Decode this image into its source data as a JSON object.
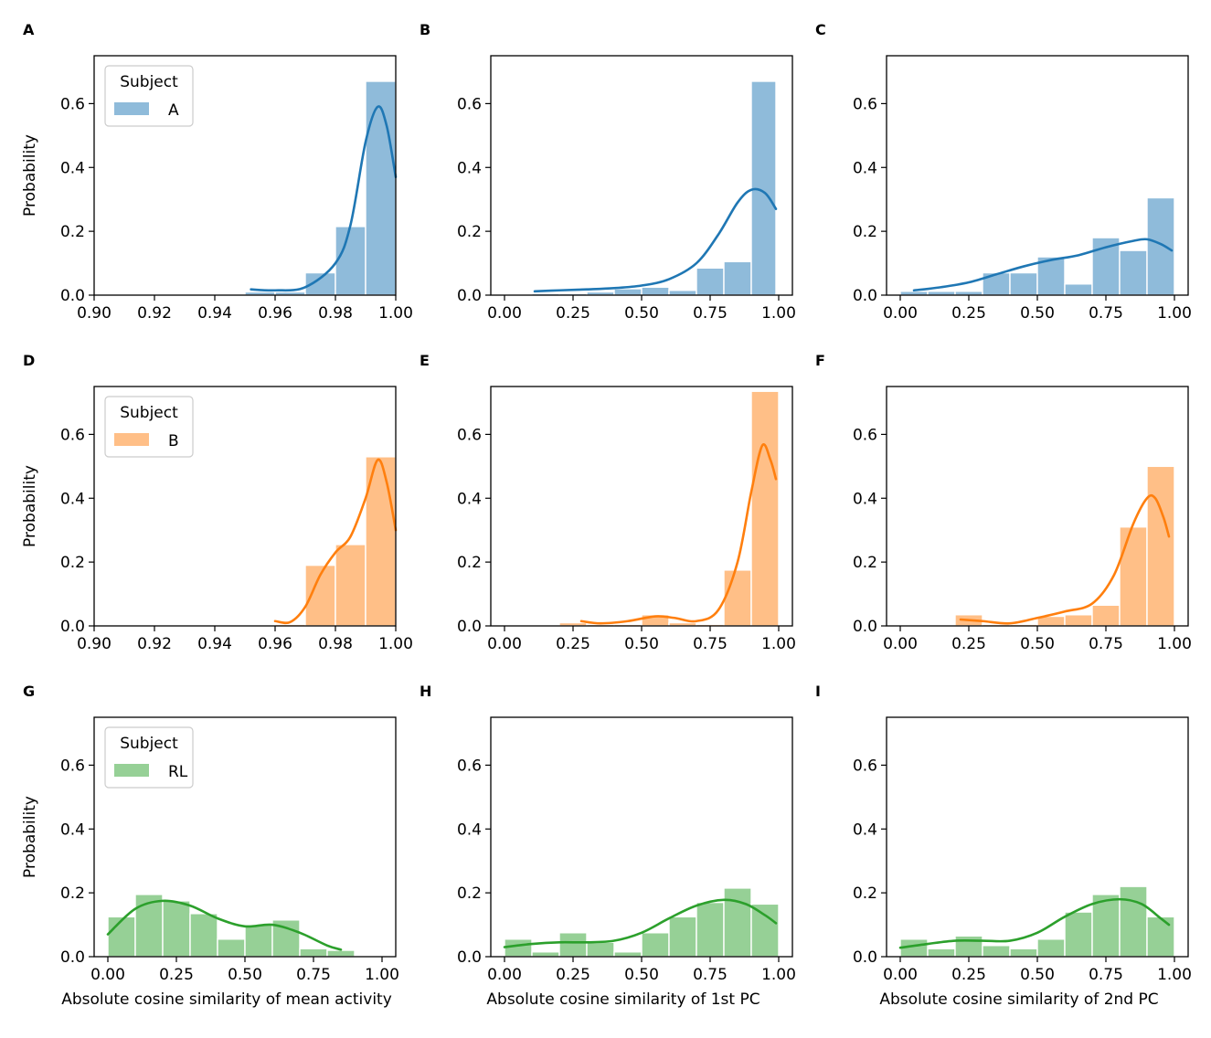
{
  "chart_data": [
    {
      "panel": "A",
      "type": "bar",
      "subject": "A",
      "color": "#1f77b4",
      "xlim": [
        0.9,
        1.0
      ],
      "ylim": [
        0,
        0.75
      ],
      "xticks": [
        "0.90",
        "0.92",
        "0.94",
        "0.96",
        "0.98",
        "1.00"
      ],
      "yticks": [
        "0.0",
        "0.2",
        "0.4",
        "0.6"
      ],
      "ylabel": "Probability",
      "xlabel": "",
      "legend": {
        "title": "Subject",
        "label": "A",
        "position": "upper-left"
      },
      "bins": [
        [
          0.95,
          0.96,
          0.01
        ],
        [
          0.96,
          0.97,
          0.01
        ],
        [
          0.97,
          0.98,
          0.07
        ],
        [
          0.98,
          0.99,
          0.215
        ],
        [
          0.99,
          1.0,
          0.67
        ]
      ],
      "kde": [
        [
          0.952,
          0.018
        ],
        [
          0.96,
          0.015
        ],
        [
          0.97,
          0.025
        ],
        [
          0.98,
          0.1
        ],
        [
          0.985,
          0.22
        ],
        [
          0.99,
          0.48
        ],
        [
          0.994,
          0.59
        ],
        [
          0.997,
          0.53
        ],
        [
          1.0,
          0.37
        ]
      ]
    },
    {
      "panel": "B",
      "type": "bar",
      "subject": "A",
      "color": "#1f77b4",
      "xlim": [
        -0.05,
        1.05
      ],
      "ylim": [
        0,
        0.75
      ],
      "xticks": [
        "0.00",
        "0.25",
        "0.50",
        "0.75",
        "1.00"
      ],
      "yticks": [
        "0.0",
        "0.2",
        "0.4",
        "0.6"
      ],
      "ylabel": "",
      "xlabel": "",
      "legend": null,
      "bins": [
        [
          0.1,
          0.2,
          0.005
        ],
        [
          0.2,
          0.3,
          0.005
        ],
        [
          0.3,
          0.4,
          0.01
        ],
        [
          0.4,
          0.5,
          0.02
        ],
        [
          0.5,
          0.6,
          0.025
        ],
        [
          0.6,
          0.7,
          0.015
        ],
        [
          0.7,
          0.8,
          0.085
        ],
        [
          0.8,
          0.9,
          0.105
        ],
        [
          0.9,
          0.99,
          0.67
        ]
      ],
      "kde": [
        [
          0.11,
          0.012
        ],
        [
          0.2,
          0.015
        ],
        [
          0.3,
          0.018
        ],
        [
          0.4,
          0.022
        ],
        [
          0.5,
          0.03
        ],
        [
          0.6,
          0.05
        ],
        [
          0.7,
          0.1
        ],
        [
          0.78,
          0.19
        ],
        [
          0.85,
          0.29
        ],
        [
          0.9,
          0.33
        ],
        [
          0.95,
          0.32
        ],
        [
          0.99,
          0.27
        ]
      ]
    },
    {
      "panel": "C",
      "type": "bar",
      "subject": "A",
      "color": "#1f77b4",
      "xlim": [
        -0.05,
        1.05
      ],
      "ylim": [
        0,
        0.75
      ],
      "xticks": [
        "0.00",
        "0.25",
        "0.50",
        "0.75",
        "1.00"
      ],
      "yticks": [
        "0.0",
        "0.2",
        "0.4",
        "0.6"
      ],
      "ylabel": "",
      "xlabel": "",
      "legend": null,
      "bins": [
        [
          0.0,
          0.1,
          0.012
        ],
        [
          0.1,
          0.2,
          0.012
        ],
        [
          0.2,
          0.3,
          0.012
        ],
        [
          0.3,
          0.4,
          0.07
        ],
        [
          0.4,
          0.5,
          0.07
        ],
        [
          0.5,
          0.6,
          0.12
        ],
        [
          0.6,
          0.7,
          0.035
        ],
        [
          0.7,
          0.8,
          0.18
        ],
        [
          0.8,
          0.9,
          0.14
        ],
        [
          0.9,
          1.0,
          0.305
        ]
      ],
      "kde": [
        [
          0.05,
          0.015
        ],
        [
          0.15,
          0.025
        ],
        [
          0.25,
          0.04
        ],
        [
          0.35,
          0.065
        ],
        [
          0.45,
          0.09
        ],
        [
          0.55,
          0.11
        ],
        [
          0.65,
          0.125
        ],
        [
          0.75,
          0.15
        ],
        [
          0.85,
          0.17
        ],
        [
          0.9,
          0.175
        ],
        [
          0.95,
          0.16
        ],
        [
          0.99,
          0.14
        ]
      ]
    },
    {
      "panel": "D",
      "type": "bar",
      "subject": "B",
      "color": "#ff7f0e",
      "xlim": [
        0.9,
        1.0
      ],
      "ylim": [
        0,
        0.75
      ],
      "xticks": [
        "0.90",
        "0.92",
        "0.94",
        "0.96",
        "0.98",
        "1.00"
      ],
      "yticks": [
        "0.0",
        "0.2",
        "0.4",
        "0.6"
      ],
      "ylabel": "Probability",
      "xlabel": "",
      "legend": {
        "title": "Subject",
        "label": "B",
        "position": "upper-left"
      },
      "bins": [
        [
          0.96,
          0.97,
          0.005
        ],
        [
          0.97,
          0.98,
          0.19
        ],
        [
          0.98,
          0.99,
          0.255
        ],
        [
          0.99,
          1.0,
          0.53
        ]
      ],
      "kde": [
        [
          0.96,
          0.015
        ],
        [
          0.965,
          0.012
        ],
        [
          0.97,
          0.06
        ],
        [
          0.975,
          0.16
        ],
        [
          0.98,
          0.23
        ],
        [
          0.985,
          0.28
        ],
        [
          0.99,
          0.4
        ],
        [
          0.994,
          0.52
        ],
        [
          0.997,
          0.45
        ],
        [
          1.0,
          0.3
        ]
      ]
    },
    {
      "panel": "E",
      "type": "bar",
      "subject": "B",
      "color": "#ff7f0e",
      "xlim": [
        -0.05,
        1.05
      ],
      "ylim": [
        0,
        0.75
      ],
      "xticks": [
        "0.00",
        "0.25",
        "0.50",
        "0.75",
        "1.00"
      ],
      "yticks": [
        "0.0",
        "0.2",
        "0.4",
        "0.6"
      ],
      "ylabel": "",
      "xlabel": "",
      "legend": null,
      "bins": [
        [
          0.2,
          0.3,
          0.01
        ],
        [
          0.3,
          0.4,
          0.005
        ],
        [
          0.4,
          0.5,
          0.005
        ],
        [
          0.5,
          0.6,
          0.035
        ],
        [
          0.6,
          0.7,
          0.01
        ],
        [
          0.7,
          0.8,
          0.005
        ],
        [
          0.8,
          0.9,
          0.175
        ],
        [
          0.9,
          1.0,
          0.735
        ]
      ],
      "kde": [
        [
          0.28,
          0.015
        ],
        [
          0.35,
          0.008
        ],
        [
          0.45,
          0.015
        ],
        [
          0.55,
          0.03
        ],
        [
          0.62,
          0.025
        ],
        [
          0.7,
          0.015
        ],
        [
          0.78,
          0.05
        ],
        [
          0.85,
          0.2
        ],
        [
          0.9,
          0.42
        ],
        [
          0.94,
          0.565
        ],
        [
          0.97,
          0.52
        ],
        [
          0.99,
          0.46
        ]
      ]
    },
    {
      "panel": "F",
      "type": "bar",
      "subject": "B",
      "color": "#ff7f0e",
      "xlim": [
        -0.05,
        1.05
      ],
      "ylim": [
        0,
        0.75
      ],
      "xticks": [
        "0.00",
        "0.25",
        "0.50",
        "0.75",
        "1.00"
      ],
      "yticks": [
        "0.0",
        "0.2",
        "0.4",
        "0.6"
      ],
      "ylabel": "",
      "xlabel": "",
      "legend": null,
      "bins": [
        [
          0.2,
          0.3,
          0.035
        ],
        [
          0.3,
          0.4,
          0.005
        ],
        [
          0.4,
          0.5,
          0.005
        ],
        [
          0.5,
          0.6,
          0.03
        ],
        [
          0.6,
          0.7,
          0.035
        ],
        [
          0.7,
          0.8,
          0.065
        ],
        [
          0.8,
          0.9,
          0.31
        ],
        [
          0.9,
          1.0,
          0.5
        ]
      ],
      "kde": [
        [
          0.22,
          0.02
        ],
        [
          0.3,
          0.015
        ],
        [
          0.4,
          0.008
        ],
        [
          0.5,
          0.025
        ],
        [
          0.6,
          0.045
        ],
        [
          0.7,
          0.07
        ],
        [
          0.78,
          0.16
        ],
        [
          0.85,
          0.32
        ],
        [
          0.9,
          0.4
        ],
        [
          0.93,
          0.4
        ],
        [
          0.96,
          0.34
        ],
        [
          0.98,
          0.28
        ]
      ]
    },
    {
      "panel": "G",
      "type": "bar",
      "subject": "RL",
      "color": "#2ca02c",
      "xlim": [
        -0.05,
        1.05
      ],
      "ylim": [
        0,
        0.75
      ],
      "xticks": [
        "0.00",
        "0.25",
        "0.50",
        "0.75",
        "1.00"
      ],
      "yticks": [
        "0.0",
        "0.2",
        "0.4",
        "0.6"
      ],
      "ylabel": "Probability",
      "xlabel": "Absolute cosine similarity of mean activity",
      "legend": {
        "title": "Subject",
        "label": "RL",
        "position": "upper-left"
      },
      "bins": [
        [
          0.0,
          0.1,
          0.125
        ],
        [
          0.1,
          0.2,
          0.195
        ],
        [
          0.2,
          0.3,
          0.175
        ],
        [
          0.3,
          0.4,
          0.135
        ],
        [
          0.4,
          0.5,
          0.055
        ],
        [
          0.5,
          0.6,
          0.1
        ],
        [
          0.6,
          0.7,
          0.115
        ],
        [
          0.7,
          0.8,
          0.025
        ],
        [
          0.8,
          0.9,
          0.02
        ]
      ],
      "kde": [
        [
          0.0,
          0.07
        ],
        [
          0.1,
          0.15
        ],
        [
          0.2,
          0.175
        ],
        [
          0.3,
          0.16
        ],
        [
          0.4,
          0.12
        ],
        [
          0.5,
          0.095
        ],
        [
          0.6,
          0.1
        ],
        [
          0.7,
          0.075
        ],
        [
          0.8,
          0.035
        ],
        [
          0.85,
          0.022
        ]
      ]
    },
    {
      "panel": "H",
      "type": "bar",
      "subject": "RL",
      "color": "#2ca02c",
      "xlim": [
        -0.05,
        1.05
      ],
      "ylim": [
        0,
        0.75
      ],
      "xticks": [
        "0.00",
        "0.25",
        "0.50",
        "0.75",
        "1.00"
      ],
      "yticks": [
        "0.0",
        "0.2",
        "0.4",
        "0.6"
      ],
      "ylabel": "",
      "xlabel": "Absolute cosine similarity of 1st PC",
      "legend": null,
      "bins": [
        [
          0.0,
          0.1,
          0.055
        ],
        [
          0.1,
          0.2,
          0.015
        ],
        [
          0.2,
          0.3,
          0.075
        ],
        [
          0.3,
          0.4,
          0.045
        ],
        [
          0.4,
          0.5,
          0.015
        ],
        [
          0.5,
          0.6,
          0.075
        ],
        [
          0.6,
          0.7,
          0.125
        ],
        [
          0.7,
          0.8,
          0.17
        ],
        [
          0.8,
          0.9,
          0.215
        ],
        [
          0.9,
          1.0,
          0.165
        ]
      ],
      "kde": [
        [
          0.0,
          0.03
        ],
        [
          0.1,
          0.04
        ],
        [
          0.2,
          0.045
        ],
        [
          0.3,
          0.045
        ],
        [
          0.4,
          0.05
        ],
        [
          0.5,
          0.075
        ],
        [
          0.6,
          0.12
        ],
        [
          0.7,
          0.16
        ],
        [
          0.8,
          0.178
        ],
        [
          0.88,
          0.165
        ],
        [
          0.95,
          0.13
        ],
        [
          0.99,
          0.105
        ]
      ]
    },
    {
      "panel": "I",
      "type": "bar",
      "subject": "RL",
      "color": "#2ca02c",
      "xlim": [
        -0.05,
        1.05
      ],
      "ylim": [
        0,
        0.75
      ],
      "xticks": [
        "0.00",
        "0.25",
        "0.50",
        "0.75",
        "1.00"
      ],
      "yticks": [
        "0.0",
        "0.2",
        "0.4",
        "0.6"
      ],
      "ylabel": "",
      "xlabel": "Absolute cosine similarity of 2nd PC",
      "legend": null,
      "bins": [
        [
          0.0,
          0.1,
          0.055
        ],
        [
          0.1,
          0.2,
          0.025
        ],
        [
          0.2,
          0.3,
          0.065
        ],
        [
          0.3,
          0.4,
          0.035
        ],
        [
          0.4,
          0.5,
          0.025
        ],
        [
          0.5,
          0.6,
          0.055
        ],
        [
          0.6,
          0.7,
          0.14
        ],
        [
          0.7,
          0.8,
          0.195
        ],
        [
          0.8,
          0.9,
          0.22
        ],
        [
          0.9,
          1.0,
          0.125
        ]
      ],
      "kde": [
        [
          0.0,
          0.028
        ],
        [
          0.1,
          0.04
        ],
        [
          0.2,
          0.05
        ],
        [
          0.3,
          0.05
        ],
        [
          0.4,
          0.05
        ],
        [
          0.5,
          0.075
        ],
        [
          0.6,
          0.125
        ],
        [
          0.7,
          0.165
        ],
        [
          0.8,
          0.18
        ],
        [
          0.88,
          0.165
        ],
        [
          0.95,
          0.12
        ],
        [
          0.98,
          0.1
        ]
      ]
    }
  ]
}
